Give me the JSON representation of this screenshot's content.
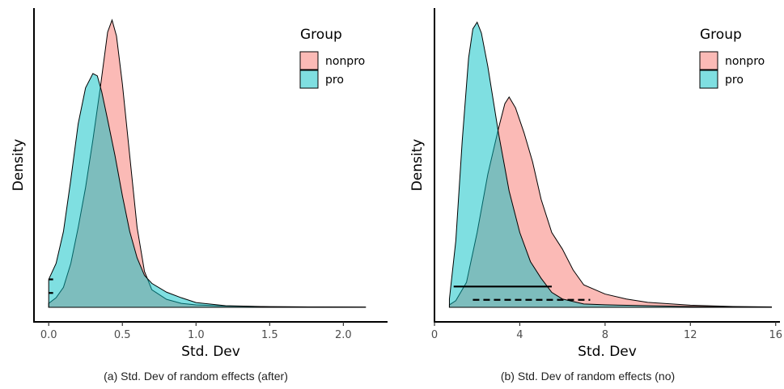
{
  "chart_data": [
    {
      "type": "area",
      "caption": "(a) Std. Dev of random effects (after)",
      "xlabel": "Std. Dev",
      "ylabel": "Density",
      "xlim": [
        -0.1,
        2.3
      ],
      "xticks": [
        0.0,
        0.5,
        1.0,
        1.5,
        2.0
      ],
      "xtick_labels": [
        "0.0",
        "0.5",
        "1.0",
        "1.5",
        "2.0"
      ],
      "legend": {
        "title": "Group",
        "position": "top-right"
      },
      "series": [
        {
          "name": "nonpro",
          "color": "#F8766D",
          "x": [
            0.0,
            0.05,
            0.1,
            0.15,
            0.2,
            0.25,
            0.3,
            0.35,
            0.4,
            0.43,
            0.46,
            0.5,
            0.55,
            0.6,
            0.65,
            0.7,
            0.8,
            0.9,
            1.0,
            1.2,
            1.5,
            1.8,
            2.15
          ],
          "y": [
            0.05,
            0.12,
            0.25,
            0.55,
            1.0,
            1.5,
            2.1,
            2.75,
            3.45,
            3.6,
            3.4,
            2.8,
            1.9,
            1.0,
            0.45,
            0.22,
            0.1,
            0.05,
            0.03,
            0.015,
            0.008,
            0.005,
            0.003
          ]
        },
        {
          "name": "pro",
          "color": "#00BFC4",
          "x": [
            0.0,
            0.05,
            0.1,
            0.15,
            0.2,
            0.25,
            0.3,
            0.33,
            0.36,
            0.4,
            0.45,
            0.5,
            0.55,
            0.6,
            0.65,
            0.7,
            0.8,
            0.9,
            1.0,
            1.2,
            1.5,
            1.8,
            2.15
          ],
          "y": [
            0.35,
            0.55,
            0.95,
            1.6,
            2.3,
            2.75,
            2.93,
            2.9,
            2.7,
            2.35,
            1.9,
            1.4,
            0.95,
            0.62,
            0.4,
            0.3,
            0.19,
            0.12,
            0.06,
            0.02,
            0.008,
            0.005,
            0.003
          ]
        }
      ],
      "intervals": [
        {
          "series": "nonpro",
          "style": "dashed",
          "x": [
            0.0,
            0.03
          ],
          "y": 0.18
        },
        {
          "series": "pro",
          "style": "solid",
          "x": [
            0.0,
            0.03
          ],
          "y": 0.35
        }
      ],
      "ylim": [
        0,
        3.75
      ],
      "grid": false
    },
    {
      "type": "area",
      "caption": "(b) Std. Dev of random effects (no)",
      "xlabel": "Std. Dev",
      "ylabel": "Density",
      "xlim": [
        0,
        16.2
      ],
      "xticks": [
        0,
        4,
        8,
        12,
        16
      ],
      "xtick_labels": [
        "0",
        "4",
        "8",
        "12",
        "16"
      ],
      "legend": {
        "title": "Group",
        "position": "top-right"
      },
      "series": [
        {
          "name": "nonpro",
          "color": "#F8766D",
          "x": [
            0.7,
            1.0,
            1.5,
            2.0,
            2.5,
            3.0,
            3.3,
            3.5,
            3.8,
            4.2,
            4.6,
            5.0,
            5.5,
            6.0,
            6.5,
            7.0,
            8.0,
            9.0,
            10.0,
            12.0,
            14.0,
            15.8
          ],
          "y": [
            0.03,
            0.08,
            0.3,
            0.9,
            1.6,
            2.15,
            2.45,
            2.53,
            2.4,
            2.1,
            1.75,
            1.3,
            0.9,
            0.7,
            0.45,
            0.27,
            0.16,
            0.1,
            0.06,
            0.025,
            0.01,
            0.005
          ]
        },
        {
          "name": "pro",
          "color": "#00BFC4",
          "x": [
            0.7,
            1.0,
            1.3,
            1.6,
            1.8,
            2.0,
            2.2,
            2.5,
            3.0,
            3.5,
            4.0,
            4.5,
            5.0,
            5.5,
            6.0,
            7.0,
            8.0,
            10.0,
            12.0,
            14.0,
            15.8
          ],
          "y": [
            0.1,
            0.8,
            2.0,
            3.0,
            3.35,
            3.43,
            3.3,
            2.9,
            2.1,
            1.4,
            0.9,
            0.55,
            0.35,
            0.18,
            0.1,
            0.04,
            0.03,
            0.02,
            0.01,
            0.005,
            0.003
          ]
        }
      ],
      "intervals": [
        {
          "series": "nonpro",
          "style": "dashed",
          "x": [
            1.8,
            7.3
          ],
          "y": 0.09
        },
        {
          "series": "pro",
          "style": "solid",
          "x": [
            0.9,
            5.5
          ],
          "y": 0.25
        }
      ],
      "ylim": [
        0,
        3.6
      ],
      "grid": false
    }
  ]
}
